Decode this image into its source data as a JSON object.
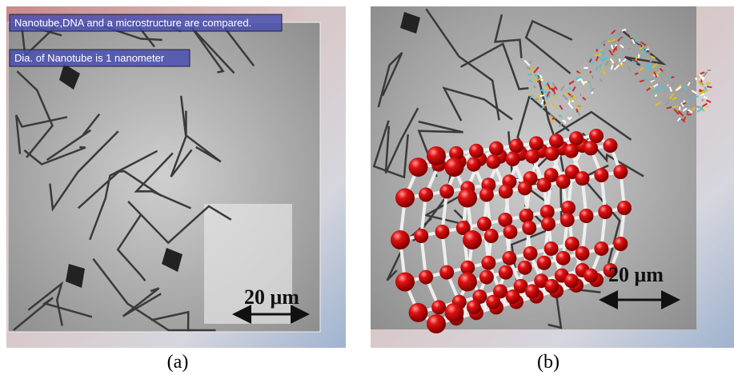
{
  "panels": [
    {
      "caption": "(a)",
      "overlay_labels": [
        "Nanotube,DNA and a microstructure are compared.",
        "Dia. of Nanotube is 1 nanometer"
      ],
      "scale_label": "20 μm"
    },
    {
      "caption": "(b)",
      "scale_label": "20 μm"
    }
  ]
}
